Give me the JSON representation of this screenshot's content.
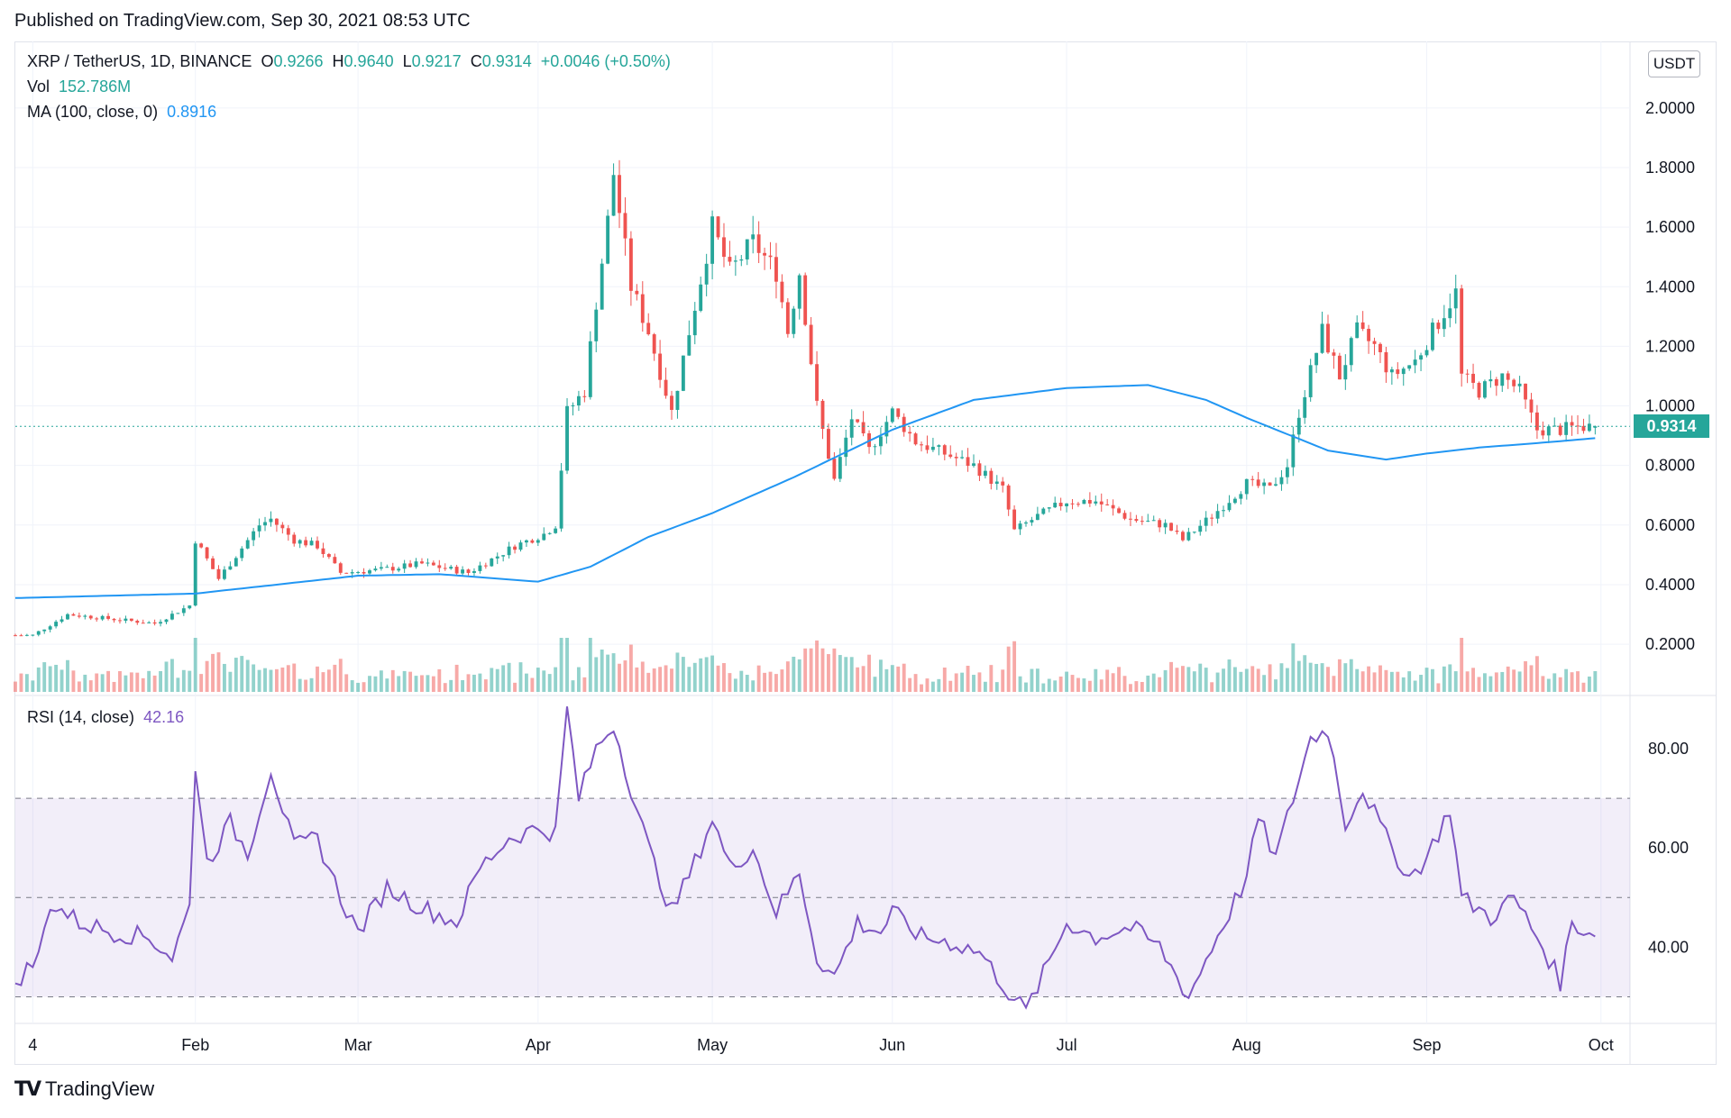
{
  "published": "Published on TradingView.com, Sep 30, 2021 08:53 UTC",
  "legend": {
    "symbol": "XRP / TetherUS, 1D, BINANCE",
    "o_label": "O",
    "o_value": "0.9266",
    "h_label": "H",
    "h_value": "0.9640",
    "l_label": "L",
    "l_value": "0.9217",
    "c_label": "C",
    "c_value": "0.9314",
    "change": "+0.0046 (+0.50%)",
    "vol_label": "Vol",
    "vol_value": "152.786M",
    "ma_label": "MA (100, close, 0)",
    "ma_value": "0.8916",
    "rsi_label": "RSI (14, close)",
    "rsi_value": "42.16"
  },
  "currency": "USDT",
  "last_price_tag": "0.9314",
  "logo_text": "TradingView",
  "colors": {
    "up": "#26a69a",
    "down": "#ef5350",
    "ma": "#2196f3",
    "rsi": "#7e57c2"
  },
  "chart_data": {
    "type": "candlestick",
    "price_axis": {
      "ticks": [
        "0.2000",
        "0.4000",
        "0.6000",
        "0.8000",
        "1.0000",
        "1.2000",
        "1.4000",
        "1.6000",
        "1.8000",
        "2.0000"
      ],
      "range": [
        0.03,
        2.1
      ]
    },
    "rsi_axis": {
      "ticks": [
        "40.00",
        "60.00",
        "80.00"
      ],
      "range": [
        25,
        90
      ],
      "bands": [
        30,
        50,
        70
      ]
    },
    "x_labels": [
      "4",
      "Feb",
      "Mar",
      "Apr",
      "May",
      "Jun",
      "Jul",
      "Aug",
      "Sep",
      "Oct"
    ],
    "price_keypoints": [
      [
        "2021-01-04",
        0.23
      ],
      [
        "2021-01-10",
        0.3
      ],
      [
        "2021-01-25",
        0.27
      ],
      [
        "2021-01-31",
        0.33
      ],
      [
        "2021-02-01",
        0.55
      ],
      [
        "2021-02-05",
        0.42
      ],
      [
        "2021-02-12",
        0.6
      ],
      [
        "2021-02-14",
        0.62
      ],
      [
        "2021-02-18",
        0.55
      ],
      [
        "2021-02-22",
        0.53
      ],
      [
        "2021-02-26",
        0.44
      ],
      [
        "2021-03-05",
        0.45
      ],
      [
        "2021-03-12",
        0.47
      ],
      [
        "2021-03-20",
        0.44
      ],
      [
        "2021-03-28",
        0.53
      ],
      [
        "2021-04-02",
        0.57
      ],
      [
        "2021-04-04",
        0.6
      ],
      [
        "2021-04-06",
        0.98
      ],
      [
        "2021-04-09",
        1.05
      ],
      [
        "2021-04-11",
        1.35
      ],
      [
        "2021-04-13",
        1.62
      ],
      [
        "2021-04-14",
        1.78
      ],
      [
        "2021-04-17",
        1.4
      ],
      [
        "2021-04-20",
        1.25
      ],
      [
        "2021-04-24",
        0.98
      ],
      [
        "2021-04-27",
        1.25
      ],
      [
        "2021-05-01",
        1.6
      ],
      [
        "2021-05-04",
        1.45
      ],
      [
        "2021-05-08",
        1.55
      ],
      [
        "2021-05-12",
        1.45
      ],
      [
        "2021-05-14",
        1.25
      ],
      [
        "2021-05-16",
        1.45
      ],
      [
        "2021-05-19",
        1.0
      ],
      [
        "2021-05-22",
        0.75
      ],
      [
        "2021-05-25",
        0.96
      ],
      [
        "2021-05-28",
        0.85
      ],
      [
        "2021-06-01",
        0.98
      ],
      [
        "2021-06-05",
        0.88
      ],
      [
        "2021-06-10",
        0.84
      ],
      [
        "2021-06-15",
        0.8
      ],
      [
        "2021-06-20",
        0.72
      ],
      [
        "2021-06-22",
        0.58
      ],
      [
        "2021-06-26",
        0.63
      ],
      [
        "2021-07-01",
        0.68
      ],
      [
        "2021-07-06",
        0.68
      ],
      [
        "2021-07-12",
        0.62
      ],
      [
        "2021-07-18",
        0.6
      ],
      [
        "2021-07-21",
        0.55
      ],
      [
        "2021-07-26",
        0.63
      ],
      [
        "2021-08-01",
        0.74
      ],
      [
        "2021-08-05",
        0.72
      ],
      [
        "2021-08-08",
        0.8
      ],
      [
        "2021-08-10",
        0.98
      ],
      [
        "2021-08-14",
        1.25
      ],
      [
        "2021-08-17",
        1.1
      ],
      [
        "2021-08-20",
        1.25
      ],
      [
        "2021-08-23",
        1.2
      ],
      [
        "2021-08-26",
        1.1
      ],
      [
        "2021-08-30",
        1.15
      ],
      [
        "2021-09-02",
        1.25
      ],
      [
        "2021-09-06",
        1.38
      ],
      [
        "2021-09-07",
        1.1
      ],
      [
        "2021-09-10",
        1.05
      ],
      [
        "2021-09-14",
        1.1
      ],
      [
        "2021-09-17",
        1.05
      ],
      [
        "2021-09-20",
        0.92
      ],
      [
        "2021-09-24",
        0.92
      ],
      [
        "2021-09-27",
        0.93
      ],
      [
        "2021-09-30",
        0.9314
      ]
    ],
    "ma_keypoints": [
      [
        "2021-01-01",
        0.355
      ],
      [
        "2021-02-01",
        0.37
      ],
      [
        "2021-03-01",
        0.43
      ],
      [
        "2021-03-15",
        0.435
      ],
      [
        "2021-04-01",
        0.41
      ],
      [
        "2021-04-10",
        0.46
      ],
      [
        "2021-04-20",
        0.56
      ],
      [
        "2021-05-01",
        0.64
      ],
      [
        "2021-05-15",
        0.76
      ],
      [
        "2021-06-01",
        0.92
      ],
      [
        "2021-06-15",
        1.02
      ],
      [
        "2021-07-01",
        1.06
      ],
      [
        "2021-07-15",
        1.07
      ],
      [
        "2021-07-25",
        1.02
      ],
      [
        "2021-08-01",
        0.96
      ],
      [
        "2021-08-15",
        0.85
      ],
      [
        "2021-08-25",
        0.82
      ],
      [
        "2021-09-01",
        0.84
      ],
      [
        "2021-09-10",
        0.86
      ],
      [
        "2021-09-20",
        0.875
      ],
      [
        "2021-09-30",
        0.8916
      ]
    ],
    "rsi_keypoints": [
      [
        "2021-01-01",
        33
      ],
      [
        "2021-01-05",
        38
      ],
      [
        "2021-01-07",
        49
      ],
      [
        "2021-01-12",
        45
      ],
      [
        "2021-01-18",
        43
      ],
      [
        "2021-01-24",
        42
      ],
      [
        "2021-01-28",
        38
      ],
      [
        "2021-01-31",
        48
      ],
      [
        "2021-02-01",
        77
      ],
      [
        "2021-02-03",
        57
      ],
      [
        "2021-02-07",
        65
      ],
      [
        "2021-02-10",
        59
      ],
      [
        "2021-02-14",
        76
      ],
      [
        "2021-02-18",
        60
      ],
      [
        "2021-02-22",
        62
      ],
      [
        "2021-02-26",
        50
      ],
      [
        "2021-03-01",
        43
      ],
      [
        "2021-03-06",
        52
      ],
      [
        "2021-03-12",
        48
      ],
      [
        "2021-03-18",
        45
      ],
      [
        "2021-03-22",
        56
      ],
      [
        "2021-03-27",
        62
      ],
      [
        "2021-04-01",
        64
      ],
      [
        "2021-04-04",
        63
      ],
      [
        "2021-04-06",
        88
      ],
      [
        "2021-04-08",
        70
      ],
      [
        "2021-04-11",
        80
      ],
      [
        "2021-04-14",
        85
      ],
      [
        "2021-04-17",
        72
      ],
      [
        "2021-04-20",
        60
      ],
      [
        "2021-04-24",
        47
      ],
      [
        "2021-04-28",
        57
      ],
      [
        "2021-05-01",
        66
      ],
      [
        "2021-05-04",
        56
      ],
      [
        "2021-05-08",
        60
      ],
      [
        "2021-05-12",
        47
      ],
      [
        "2021-05-16",
        55
      ],
      [
        "2021-05-19",
        38
      ],
      [
        "2021-05-22",
        34
      ],
      [
        "2021-05-26",
        45
      ],
      [
        "2021-05-30",
        43
      ],
      [
        "2021-06-01",
        47
      ],
      [
        "2021-06-06",
        42
      ],
      [
        "2021-06-11",
        41
      ],
      [
        "2021-06-16",
        39
      ],
      [
        "2021-06-21",
        31
      ],
      [
        "2021-06-24",
        27
      ],
      [
        "2021-06-28",
        37
      ],
      [
        "2021-07-01",
        45
      ],
      [
        "2021-07-06",
        42
      ],
      [
        "2021-07-12",
        44
      ],
      [
        "2021-07-17",
        40
      ],
      [
        "2021-07-22",
        30
      ],
      [
        "2021-07-26",
        40
      ],
      [
        "2021-08-01",
        54
      ],
      [
        "2021-08-03",
        66
      ],
      [
        "2021-08-06",
        58
      ],
      [
        "2021-08-09",
        70
      ],
      [
        "2021-08-12",
        82
      ],
      [
        "2021-08-15",
        84
      ],
      [
        "2021-08-18",
        65
      ],
      [
        "2021-08-21",
        72
      ],
      [
        "2021-08-25",
        62
      ],
      [
        "2021-08-29",
        54
      ],
      [
        "2021-09-01",
        58
      ],
      [
        "2021-09-05",
        68
      ],
      [
        "2021-09-07",
        50
      ],
      [
        "2021-09-12",
        46
      ],
      [
        "2021-09-16",
        50
      ],
      [
        "2021-09-21",
        40
      ],
      [
        "2021-09-24",
        33
      ],
      [
        "2021-09-26",
        45
      ],
      [
        "2021-09-30",
        42.16
      ]
    ]
  }
}
